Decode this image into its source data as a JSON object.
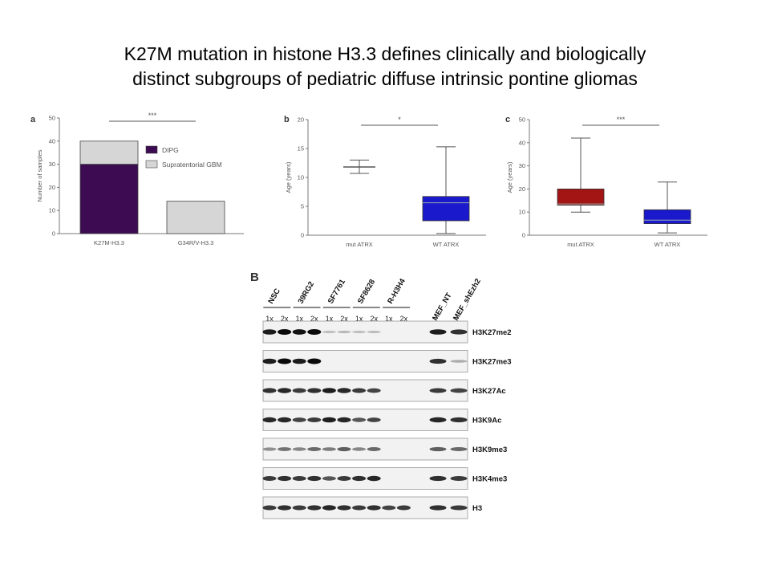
{
  "title": {
    "line1": "K27M mutation in histone H3.3 defines clinically and biologically",
    "line2": "distinct subgroups of pediatric diffuse intrinsic pontine gliomas"
  },
  "chart_data": [
    {
      "panel": "a",
      "type": "bar",
      "stacked": true,
      "ylabel": "Number of samples",
      "ylim": [
        0,
        50
      ],
      "yticks": [
        0,
        10,
        20,
        30,
        40,
        50
      ],
      "categories": [
        "K27M-H3.3",
        "G34R/V-H3.3"
      ],
      "series": [
        {
          "name": "DIPG",
          "values": [
            30,
            0
          ],
          "color": "#3c0b52"
        },
        {
          "name": "Supratentorial GBM",
          "values": [
            10,
            14
          ],
          "color": "#d6d6d6"
        }
      ],
      "significance": "***",
      "legend_position": "right"
    },
    {
      "panel": "b",
      "type": "box",
      "ylabel": "Age (years)",
      "ylim": [
        0,
        20
      ],
      "yticks": [
        0,
        5,
        10,
        15,
        20
      ],
      "categories": [
        "mut ATRX",
        "WT ATRX"
      ],
      "boxes": [
        {
          "min": 10.7,
          "q1": 11.8,
          "median": 11.8,
          "q3": 11.8,
          "max": 13.0,
          "color": "#ffffff"
        },
        {
          "min": 0.3,
          "q1": 2.5,
          "median": 5.6,
          "q3": 6.7,
          "max": 15.3,
          "color": "#1a1acc"
        }
      ],
      "significance": "*"
    },
    {
      "panel": "c",
      "type": "box",
      "ylabel": "Age (years)",
      "ylim": [
        0,
        50
      ],
      "yticks": [
        0,
        10,
        20,
        30,
        40,
        50
      ],
      "categories": [
        "mut ATRX",
        "WT ATRX"
      ],
      "boxes": [
        {
          "min": 10,
          "q1": 13,
          "median": 13.5,
          "q3": 20,
          "max": 42,
          "color": "#a31515"
        },
        {
          "min": 1,
          "q1": 5,
          "median": 6.5,
          "q3": 11,
          "max": 23,
          "color": "#1a1acc"
        }
      ],
      "significance": "***"
    }
  ],
  "blot": {
    "panel_label": "B",
    "cell_lines": [
      "NSC",
      "39RG2",
      "SF7761",
      "SF8628",
      "R-H3H4",
      "MEF_NT",
      "MEF_shEzh2"
    ],
    "doses": [
      "1x",
      "2x",
      "1x",
      "2x",
      "1x",
      "2x",
      "1x",
      "2x",
      "1x",
      "2x"
    ],
    "rows": [
      {
        "label": "H3K27me2",
        "lanes": [
          0.9,
          1.0,
          0.95,
          1.0,
          0.05,
          0.08,
          0.05,
          0.06,
          0.0,
          0.0,
          0.9,
          0.8
        ]
      },
      {
        "label": "H3K27me3",
        "lanes": [
          0.9,
          1.0,
          0.9,
          1.0,
          0.0,
          0.0,
          0.0,
          0.0,
          0.0,
          0.0,
          0.8,
          0.15
        ]
      },
      {
        "label": "H3K27Ac",
        "lanes": [
          0.8,
          0.85,
          0.75,
          0.8,
          0.9,
          0.85,
          0.75,
          0.7,
          0.0,
          0.0,
          0.75,
          0.7
        ]
      },
      {
        "label": "H3K9Ac",
        "lanes": [
          0.85,
          0.85,
          0.7,
          0.75,
          0.9,
          0.85,
          0.6,
          0.7,
          0.0,
          0.0,
          0.85,
          0.8
        ]
      },
      {
        "label": "H3K9me3",
        "lanes": [
          0.3,
          0.45,
          0.35,
          0.5,
          0.4,
          0.55,
          0.35,
          0.5,
          0.0,
          0.0,
          0.55,
          0.5
        ]
      },
      {
        "label": "H3K4me3",
        "lanes": [
          0.75,
          0.8,
          0.75,
          0.8,
          0.6,
          0.75,
          0.8,
          0.85,
          0.0,
          0.0,
          0.8,
          0.75
        ]
      },
      {
        "label": "H3",
        "lanes": [
          0.75,
          0.8,
          0.75,
          0.8,
          0.85,
          0.8,
          0.75,
          0.8,
          0.7,
          0.75,
          0.8,
          0.75
        ]
      }
    ]
  }
}
